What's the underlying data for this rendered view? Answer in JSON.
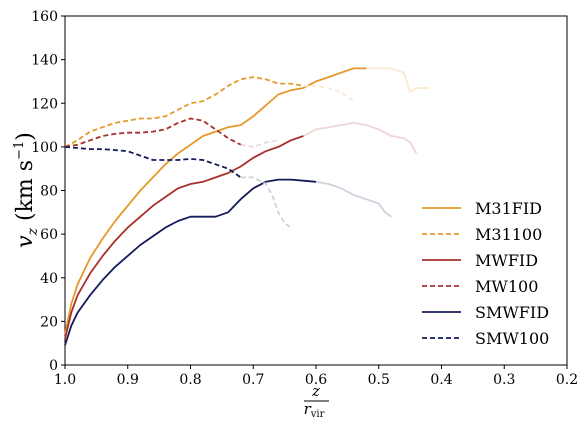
{
  "chart_data": {
    "type": "line",
    "ylabel": "v_z (km s⁻¹)",
    "ylabel_var": "v",
    "ylabel_sub": "z",
    "ylabel_unit": "(km s",
    "ylabel_exp": "−1",
    "ylabel_close": ")",
    "xlabel_num": "z",
    "xlabel_den": "r",
    "xlabel_den_sub": "vir",
    "xlim": [
      1.0,
      0.2
    ],
    "ylim": [
      0,
      160
    ],
    "xticks": [
      "1.0",
      "0.9",
      "0.8",
      "0.7",
      "0.6",
      "0.5",
      "0.4",
      "0.3",
      "0.2"
    ],
    "xtick_values": [
      1.0,
      0.9,
      0.8,
      0.7,
      0.6,
      0.5,
      0.4,
      0.3,
      0.2
    ],
    "yticks": [
      "0",
      "20",
      "40",
      "60",
      "80",
      "100",
      "120",
      "140",
      "160"
    ],
    "ytick_values": [
      0,
      20,
      40,
      60,
      80,
      100,
      120,
      140,
      160
    ],
    "grid": false,
    "legend_position": "lower-right",
    "series": [
      {
        "name": "M31FID",
        "color": "#e6982a",
        "dash": "solid",
        "x": [
          1.0,
          0.99,
          0.98,
          0.96,
          0.94,
          0.92,
          0.9,
          0.88,
          0.86,
          0.84,
          0.82,
          0.8,
          0.78,
          0.76,
          0.74,
          0.72,
          0.7,
          0.68,
          0.66,
          0.64,
          0.62,
          0.6,
          0.58,
          0.56,
          0.54,
          0.52
        ],
        "y": [
          14,
          28,
          37,
          49,
          58,
          66,
          73,
          80,
          86,
          92,
          97,
          101,
          105,
          107,
          109,
          110,
          114,
          119,
          124,
          126,
          127,
          130,
          132,
          134,
          136,
          136
        ],
        "faded_x": [
          0.52,
          0.5,
          0.48,
          0.46,
          0.45,
          0.44,
          0.43,
          0.42
        ],
        "faded_y": [
          136,
          136,
          136,
          134,
          125,
          127,
          127,
          127
        ]
      },
      {
        "name": "M31100",
        "color": "#e6982a",
        "dash": "dashed",
        "x": [
          1.0,
          0.98,
          0.96,
          0.94,
          0.92,
          0.9,
          0.88,
          0.86,
          0.84,
          0.82,
          0.8,
          0.78,
          0.76,
          0.74,
          0.72,
          0.7,
          0.68,
          0.66,
          0.64,
          0.62
        ],
        "y": [
          100,
          103,
          107,
          109,
          111,
          112,
          113,
          113,
          114,
          117,
          120,
          121,
          124,
          128,
          131,
          132,
          131,
          129,
          129,
          128
        ],
        "faded_x": [
          0.62,
          0.6,
          0.58,
          0.56,
          0.54
        ],
        "faded_y": [
          128,
          128,
          127,
          125,
          121
        ]
      },
      {
        "name": "MWFID",
        "color": "#a8302c",
        "dash": "solid",
        "x": [
          1.0,
          0.99,
          0.98,
          0.96,
          0.94,
          0.92,
          0.9,
          0.88,
          0.86,
          0.84,
          0.82,
          0.8,
          0.78,
          0.76,
          0.74,
          0.72,
          0.7,
          0.68,
          0.66,
          0.64,
          0.62
        ],
        "y": [
          12,
          24,
          32,
          42,
          50,
          57,
          63,
          68,
          73,
          77,
          81,
          83,
          84,
          86,
          88,
          91,
          95,
          98,
          100,
          103,
          105
        ],
        "faded_x": [
          0.62,
          0.6,
          0.58,
          0.56,
          0.54,
          0.52,
          0.5,
          0.48,
          0.46,
          0.45,
          0.44
        ],
        "faded_y": [
          105,
          108,
          109,
          110,
          111,
          110,
          108,
          105,
          104,
          102,
          97
        ]
      },
      {
        "name": "MW100",
        "color": "#a8302c",
        "dash": "dashed",
        "x": [
          1.0,
          0.98,
          0.96,
          0.94,
          0.92,
          0.9,
          0.88,
          0.86,
          0.84,
          0.82,
          0.8,
          0.78,
          0.76,
          0.74,
          0.72
        ],
        "y": [
          100,
          101,
          103,
          105,
          106,
          106.5,
          106.5,
          107,
          108,
          111,
          113,
          112,
          108,
          104,
          101
        ],
        "faded_x": [
          0.72,
          0.7,
          0.68,
          0.66
        ],
        "faded_y": [
          101,
          100,
          102,
          103
        ]
      },
      {
        "name": "SMWFID",
        "color": "#141b5c",
        "dash": "solid",
        "x": [
          1.0,
          0.99,
          0.98,
          0.96,
          0.94,
          0.92,
          0.9,
          0.88,
          0.86,
          0.84,
          0.82,
          0.8,
          0.78,
          0.76,
          0.74,
          0.72,
          0.7,
          0.68,
          0.66,
          0.64,
          0.62,
          0.6
        ],
        "y": [
          9,
          18,
          24,
          32,
          39,
          45,
          50,
          55,
          59,
          63,
          66,
          68,
          68,
          68,
          70,
          76,
          81,
          84,
          85,
          85,
          84.5,
          84
        ],
        "faded_x": [
          0.6,
          0.58,
          0.56,
          0.54,
          0.52,
          0.5,
          0.49,
          0.48
        ],
        "faded_y": [
          84,
          83,
          81,
          78,
          76,
          74,
          70,
          68
        ]
      },
      {
        "name": "SMW100",
        "color": "#141b5c",
        "dash": "dashed",
        "x": [
          1.0,
          0.98,
          0.96,
          0.94,
          0.92,
          0.9,
          0.88,
          0.86,
          0.84,
          0.82,
          0.8,
          0.78,
          0.76,
          0.74,
          0.72
        ],
        "y": [
          100,
          99.5,
          99,
          99,
          98.5,
          98,
          96,
          94,
          94,
          94,
          94.5,
          94,
          92,
          90,
          86
        ],
        "faded_x": [
          0.72,
          0.7,
          0.68,
          0.67,
          0.66,
          0.65,
          0.64
        ],
        "faded_y": [
          86,
          86,
          83,
          78,
          70,
          65,
          63
        ]
      }
    ]
  }
}
